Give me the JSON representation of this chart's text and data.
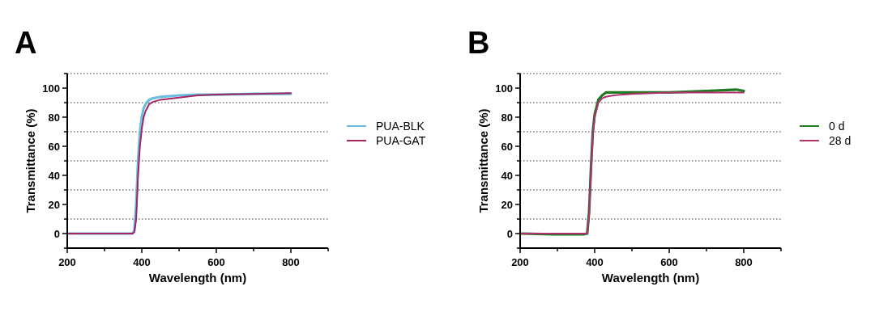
{
  "chart_data": [
    {
      "type": "line",
      "title": "A",
      "xlabel": "Wavelength (nm)",
      "ylabel": "Transmittance (%)",
      "xlim": [
        200,
        900
      ],
      "xticks": [
        200,
        {
          "value": 300,
          "label": null
        },
        400,
        {
          "value": 500,
          "label": null
        },
        600,
        {
          "value": 700,
          "label": null
        },
        800,
        {
          "value": 900,
          "label": null
        }
      ],
      "ylim": [
        -10,
        110
      ],
      "yticks": [
        {
          "value": -10,
          "label": null
        },
        0,
        {
          "value": 10,
          "label": null
        },
        20,
        {
          "value": 30,
          "label": null
        },
        40,
        {
          "value": 50,
          "label": null
        },
        60,
        {
          "value": 70,
          "label": null
        },
        80,
        {
          "value": 90,
          "label": null
        },
        100,
        {
          "value": 110,
          "label": null
        }
      ],
      "grid": "y",
      "legend": "right",
      "marker": "none",
      "line_style": "solid",
      "x": [
        200,
        300,
        370,
        375,
        380,
        385,
        390,
        395,
        400,
        405,
        410,
        420,
        430,
        450,
        500,
        550,
        600,
        700,
        800
      ],
      "series": [
        {
          "name": "PUA-BLK",
          "color": "#6cbde2",
          "values": [
            0,
            0,
            0,
            0,
            2,
            20,
            50,
            70,
            80,
            86,
            89,
            92,
            93,
            94,
            95,
            95.5,
            95.5,
            96,
            96
          ]
        },
        {
          "name": "PUA-GAT",
          "color": "#a3245f",
          "values": [
            0,
            0,
            0,
            0,
            1,
            10,
            40,
            60,
            72,
            80,
            84,
            89,
            90.5,
            92,
            93.5,
            95,
            95.5,
            96,
            96.5
          ]
        }
      ]
    },
    {
      "type": "line",
      "title": "B",
      "xlabel": "Wavelength (nm)",
      "ylabel": "Transmittance (%)",
      "xlim": [
        200,
        900
      ],
      "xticks": [
        200,
        {
          "value": 300,
          "label": null
        },
        400,
        {
          "value": 500,
          "label": null
        },
        600,
        {
          "value": 700,
          "label": null
        },
        800,
        {
          "value": 900,
          "label": null
        }
      ],
      "ylim": [
        -10,
        110
      ],
      "yticks": [
        {
          "value": -10,
          "label": null
        },
        0,
        {
          "value": 10,
          "label": null
        },
        20,
        {
          "value": 30,
          "label": null
        },
        40,
        {
          "value": 50,
          "label": null
        },
        60,
        {
          "value": 70,
          "label": null
        },
        80,
        {
          "value": 90,
          "label": null
        },
        100,
        {
          "value": 110,
          "label": null
        }
      ],
      "grid": "y",
      "legend": "right",
      "marker": "none",
      "line_style": "solid",
      "x": [
        200,
        290,
        370,
        380,
        385,
        390,
        395,
        400,
        410,
        420,
        430,
        450,
        500,
        600,
        700,
        780,
        800
      ],
      "series": [
        {
          "name": "0 d",
          "color": "#1f7a1f",
          "values": [
            0,
            -0.5,
            -0.5,
            0,
            15,
            45,
            70,
            82,
            92,
            95,
            97,
            97,
            97,
            97,
            98,
            99,
            98
          ]
        },
        {
          "name": "28 d",
          "color": "#b03070",
          "values": [
            0,
            0,
            0,
            0,
            12,
            42,
            68,
            80,
            90,
            93,
            94,
            95,
            96,
            97,
            97,
            97,
            97
          ]
        }
      ]
    }
  ]
}
